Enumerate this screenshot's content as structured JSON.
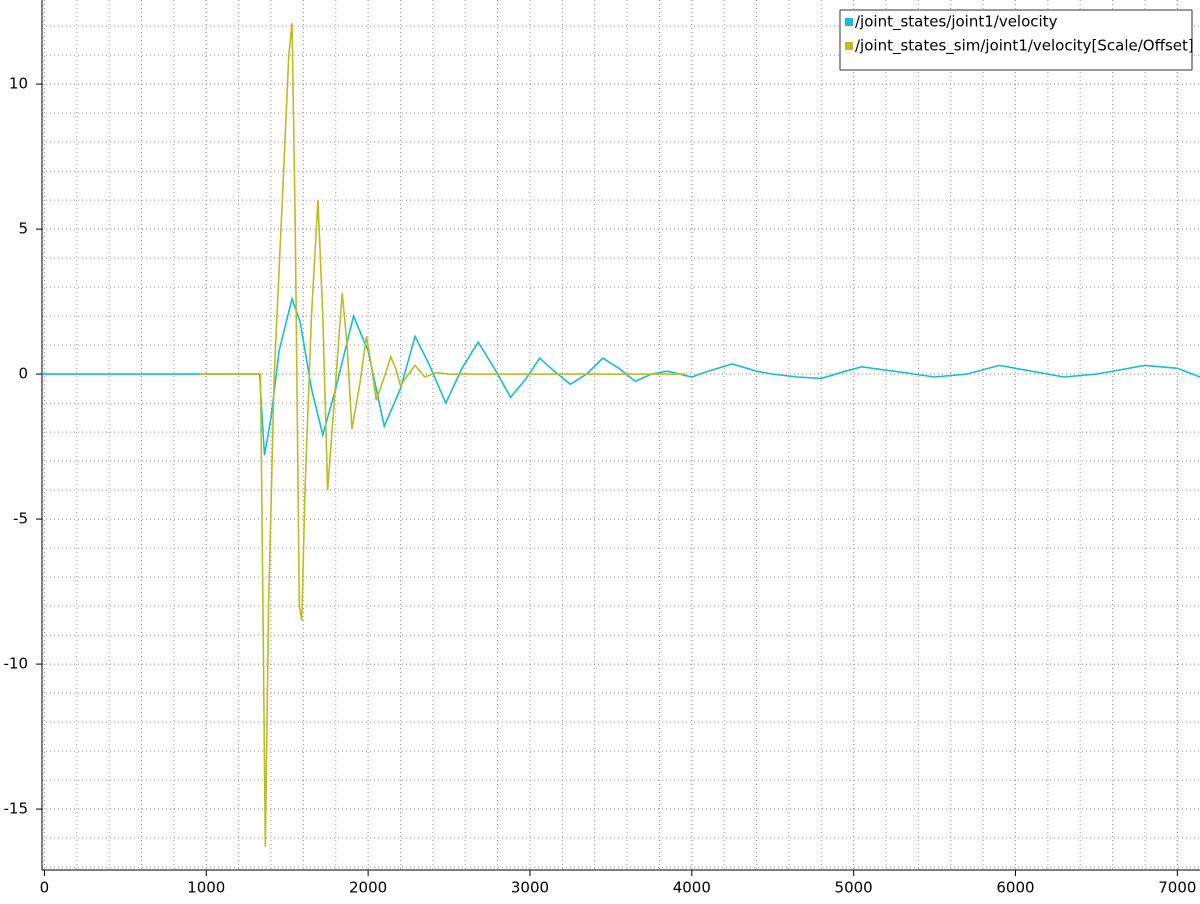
{
  "chart_data": {
    "type": "line",
    "xlim": [
      -15,
      7140
    ],
    "xticks": [
      0,
      1000,
      2000,
      3000,
      4000,
      5000,
      6000,
      7000
    ],
    "ylim": [
      -17.1,
      12.9
    ],
    "yticks": [
      -15,
      -10,
      -5,
      0,
      5,
      10
    ],
    "grid": true,
    "legend": "upper right",
    "series": [
      {
        "name": "/joint_states/joint1/velocity",
        "color": "#17becf",
        "x": [
          -15,
          1330,
          1345,
          1360,
          1400,
          1450,
          1530,
          1580,
          1650,
          1720,
          1800,
          1910,
          2000,
          2100,
          2200,
          2290,
          2380,
          2480,
          2580,
          2680,
          2780,
          2880,
          2970,
          3060,
          3150,
          3250,
          3350,
          3450,
          3550,
          3650,
          3750,
          3850,
          4000,
          4100,
          4250,
          4400,
          4500,
          4650,
          4800,
          4950,
          5050,
          5250,
          5500,
          5700,
          5900,
          6100,
          6300,
          6500,
          6800,
          7000,
          7140
        ],
        "values": [
          0,
          0,
          -1.5,
          -2.8,
          -1.5,
          0.8,
          2.6,
          1.8,
          -0.5,
          -2.1,
          -0.5,
          2.0,
          0.8,
          -1.8,
          -0.5,
          1.3,
          0.3,
          -1.0,
          0.2,
          1.1,
          0.2,
          -0.8,
          -0.2,
          0.55,
          0.1,
          -0.35,
          0,
          0.55,
          0.2,
          -0.25,
          0,
          0.1,
          -0.1,
          0.1,
          0.35,
          0.1,
          0,
          -0.1,
          -0.15,
          0.1,
          0.25,
          0.1,
          -0.1,
          0,
          0.3,
          0.1,
          -0.1,
          0,
          0.3,
          0.2,
          -0.1
        ]
      },
      {
        "name": "/joint_states_sim/joint1/velocity[Scale/Offset]",
        "color": "#bcbd22",
        "x": [
          960,
          1335,
          1350,
          1365,
          1385,
          1420,
          1470,
          1510,
          1530,
          1550,
          1575,
          1590,
          1610,
          1650,
          1690,
          1720,
          1750,
          1790,
          1840,
          1870,
          1900,
          1950,
          1990,
          2020,
          2050,
          2100,
          2140,
          2170,
          2200,
          2250,
          2290,
          2320,
          2350,
          2420,
          2500,
          2600,
          3000,
          3500,
          3960
        ],
        "values": [
          0,
          0,
          -8,
          -16.3,
          -8,
          0,
          6,
          11,
          12.1,
          5,
          -8,
          -8.5,
          -4,
          2,
          6.0,
          2,
          -4.0,
          -1,
          2.8,
          1,
          -1.9,
          -0.3,
          1.3,
          0.3,
          -0.9,
          -0.1,
          0.6,
          0.2,
          -0.4,
          0,
          0.3,
          0.1,
          -0.1,
          0.05,
          0,
          0,
          0,
          0,
          0
        ]
      }
    ]
  }
}
